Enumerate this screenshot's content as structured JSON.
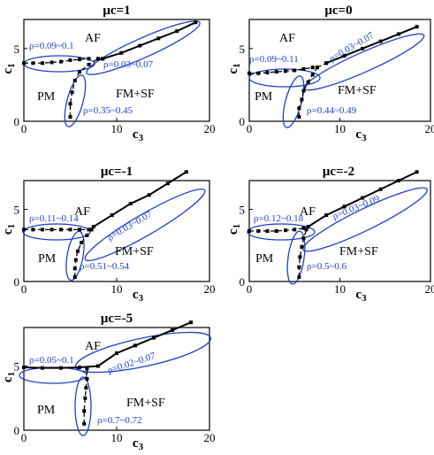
{
  "figure": {
    "panels": [
      {
        "title": "μc=1",
        "x_label": "c3",
        "y_label": "c1",
        "x_ticks": [
          "0",
          "10",
          "20"
        ],
        "y_ticks": [
          "0",
          "5"
        ],
        "regions": [
          "AF",
          "PM",
          "FM+SF"
        ],
        "annotations": [
          "ρ=0.09~0.1",
          "ρ=0.03~0.07",
          "ρ=0.35~0.45"
        ]
      },
      {
        "title": "μc=0",
        "x_label": "c3",
        "y_label": "c1",
        "x_ticks": [
          "0",
          "10",
          "20"
        ],
        "y_ticks": [
          "0",
          "5"
        ],
        "regions": [
          "AF",
          "PM",
          "FM+SF"
        ],
        "annotations": [
          "ρ=0.09~0.11",
          "ρ=0.03~0.07",
          "ρ=0.44~0.49"
        ]
      },
      {
        "title": "μc=-1",
        "x_label": "c3",
        "y_label": "c1",
        "x_ticks": [
          "0",
          "10",
          "20"
        ],
        "y_ticks": [
          "0",
          "5"
        ],
        "regions": [
          "AF",
          "PM",
          "FM+SF"
        ],
        "annotations": [
          "ρ=0.11~0.14",
          "ρ=0.03~0.07",
          "ρ=0.51~0.54"
        ]
      },
      {
        "title": "μc=-2",
        "x_label": "c3",
        "y_label": "c1",
        "x_ticks": [
          "0",
          "10",
          "20"
        ],
        "y_ticks": [
          "0",
          "5"
        ],
        "regions": [
          "AF",
          "PM",
          "FM+SF"
        ],
        "annotations": [
          "ρ=0.12~0.18",
          "ρ=0.03~0.09",
          "ρ=0.5~0.6"
        ]
      },
      {
        "title": "μc=-5",
        "x_label": "c3",
        "y_label": "c1",
        "x_ticks": [
          "0",
          "10",
          "20"
        ],
        "y_ticks": [
          "0",
          "5"
        ],
        "regions": [
          "AF",
          "PM",
          "FM+SF"
        ],
        "annotations": [
          "ρ=0.05~0.1",
          "ρ=0.02~0.07",
          "ρ=0.7~0.72"
        ]
      }
    ]
  },
  "colors": {
    "annotation": "#1e3fc8",
    "lines": "#000000",
    "ellipse": "#1e3fc8"
  },
  "chart_data": [
    {
      "type": "line",
      "title": "μc=1",
      "xlabel": "c3",
      "ylabel": "c1",
      "xlim": [
        0,
        20
      ],
      "ylim": [
        0,
        7
      ],
      "series": [
        {
          "style": "dashed",
          "x": [
            0,
            1,
            2,
            3,
            4,
            5,
            6,
            7
          ],
          "y": [
            4.0,
            4.0,
            4.0,
            4.05,
            4.1,
            4.2,
            4.25,
            4.3
          ]
        },
        {
          "style": "solid",
          "x": [
            8.5,
            10.5,
            12.5,
            14.5,
            16.5,
            18.5
          ],
          "y": [
            4.3,
            4.7,
            5.2,
            5.7,
            6.2,
            6.8
          ]
        },
        {
          "style": "dashed",
          "x": [
            8.0,
            8.5
          ],
          "y": [
            4.3,
            4.3
          ]
        },
        {
          "style": "dashed",
          "x": [
            5.0,
            5.0,
            5.2,
            5.5,
            6.0,
            7.0,
            8.0
          ],
          "y": [
            0.3,
            1.2,
            2.0,
            2.8,
            3.4,
            3.9,
            4.3
          ]
        }
      ]
    },
    {
      "type": "line",
      "title": "μc=0",
      "xlabel": "c3",
      "ylabel": "c1",
      "xlim": [
        0,
        20
      ],
      "ylim": [
        0,
        7
      ],
      "series": [
        {
          "style": "dashed",
          "x": [
            0,
            1,
            2,
            3,
            4,
            5,
            6,
            7
          ],
          "y": [
            3.3,
            3.3,
            3.35,
            3.4,
            3.45,
            3.5,
            3.6,
            3.7
          ]
        },
        {
          "style": "solid",
          "x": [
            8.5,
            10.5,
            12.5,
            14.5,
            16.5,
            18.5
          ],
          "y": [
            4.0,
            4.5,
            5.0,
            5.5,
            6.0,
            6.5
          ]
        },
        {
          "style": "dashed",
          "x": [
            7.5,
            8.5
          ],
          "y": [
            3.7,
            4.0
          ]
        },
        {
          "style": "dashed",
          "x": [
            5.5,
            5.5,
            5.8,
            6.0,
            6.5,
            7.0,
            7.5
          ],
          "y": [
            0.3,
            0.9,
            1.5,
            2.1,
            2.7,
            3.2,
            3.7
          ]
        }
      ]
    },
    {
      "type": "line",
      "title": "μc=-1",
      "xlabel": "c3",
      "ylabel": "c1",
      "xlim": [
        0,
        20
      ],
      "ylim": [
        0,
        7
      ],
      "series": [
        {
          "style": "dashed",
          "x": [
            0,
            1,
            2,
            3,
            4,
            5,
            6,
            7
          ],
          "y": [
            3.6,
            3.6,
            3.6,
            3.6,
            3.6,
            3.6,
            3.6,
            3.6
          ]
        },
        {
          "style": "solid",
          "x": [
            7.5,
            9.5,
            11.5,
            13.5,
            15.5,
            17.5
          ],
          "y": [
            3.8,
            4.6,
            5.4,
            6.0,
            6.8,
            7.6
          ]
        },
        {
          "style": "dashed",
          "x": [
            5.5,
            5.5,
            5.6,
            5.8,
            6.2,
            6.8,
            7.3
          ],
          "y": [
            0.3,
            0.9,
            1.5,
            2.1,
            2.7,
            3.2,
            3.6
          ]
        }
      ]
    },
    {
      "type": "line",
      "title": "μc=-2",
      "xlabel": "c3",
      "ylabel": "c1",
      "xlim": [
        0,
        20
      ],
      "ylim": [
        0,
        7
      ],
      "series": [
        {
          "style": "dashed",
          "x": [
            0,
            1,
            2,
            3,
            4,
            5,
            6
          ],
          "y": [
            3.5,
            3.5,
            3.5,
            3.5,
            3.55,
            3.6,
            3.7
          ]
        },
        {
          "style": "solid",
          "x": [
            6.5,
            8.5,
            10.5,
            12.5,
            14.5,
            16.5,
            18.5
          ],
          "y": [
            3.8,
            4.6,
            5.2,
            5.8,
            6.4,
            7.0,
            7.6
          ]
        },
        {
          "style": "dashed",
          "x": [
            5.5,
            5.5,
            5.6,
            5.8,
            6.0,
            6.3
          ],
          "y": [
            0.3,
            1.0,
            1.7,
            2.4,
            3.0,
            3.6
          ]
        }
      ]
    },
    {
      "type": "line",
      "title": "μc=-5",
      "xlabel": "c3",
      "ylabel": "c1",
      "xlim": [
        0,
        20
      ],
      "ylim": [
        0,
        8
      ],
      "series": [
        {
          "style": "solid",
          "x": [
            0,
            2,
            4,
            6,
            8
          ],
          "y": [
            4.9,
            4.85,
            4.85,
            4.9,
            5.0
          ]
        },
        {
          "style": "solid",
          "x": [
            8,
            10,
            12,
            14,
            16,
            18
          ],
          "y": [
            5.0,
            6.0,
            6.6,
            7.2,
            7.8,
            8.4
          ]
        },
        {
          "style": "dashed",
          "x": [
            6.5,
            6.5,
            6.6,
            6.7,
            6.8,
            6.8
          ],
          "y": [
            0.5,
            1.5,
            2.5,
            3.3,
            4.0,
            4.8
          ]
        }
      ]
    }
  ]
}
